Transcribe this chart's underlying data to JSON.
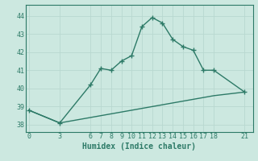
{
  "title": "",
  "xlabel": "Humidex (Indice chaleur)",
  "ylabel": "",
  "background_color": "#cce8e0",
  "line_color": "#2d7a67",
  "grid_color": "#b8d8d0",
  "x_ticks": [
    0,
    3,
    6,
    7,
    8,
    9,
    10,
    11,
    12,
    13,
    14,
    15,
    16,
    17,
    18,
    21
  ],
  "y_ticks": [
    38,
    39,
    40,
    41,
    42,
    43,
    44
  ],
  "ylim": [
    37.6,
    44.6
  ],
  "xlim": [
    -0.3,
    21.8
  ],
  "upper_x": [
    0,
    3,
    6,
    7,
    8,
    9,
    10,
    11,
    12,
    13,
    14,
    15,
    16,
    17,
    18,
    21
  ],
  "upper_y": [
    38.8,
    38.1,
    40.2,
    41.1,
    41.0,
    41.5,
    41.8,
    43.4,
    43.9,
    43.6,
    42.7,
    42.3,
    42.1,
    41.0,
    41.0,
    39.8
  ],
  "lower_x": [
    0,
    3,
    6,
    7,
    8,
    9,
    10,
    11,
    12,
    13,
    14,
    15,
    16,
    17,
    18,
    21
  ],
  "lower_y": [
    38.8,
    38.1,
    38.4,
    38.5,
    38.6,
    38.7,
    38.8,
    38.9,
    39.0,
    39.1,
    39.2,
    39.3,
    39.4,
    39.5,
    39.6,
    39.8
  ],
  "marker": "+",
  "markersize": 4,
  "linewidth": 1.0,
  "tick_fontsize": 6,
  "label_fontsize": 7
}
